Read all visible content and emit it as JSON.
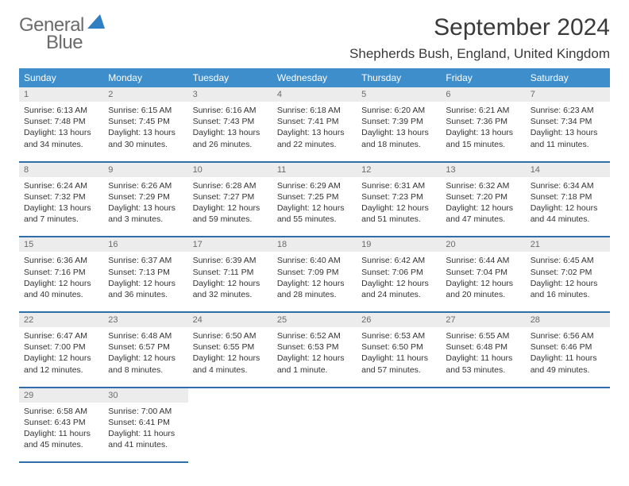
{
  "logo": {
    "line1": "General",
    "line2": "Blue"
  },
  "title": "September 2024",
  "location": "Shepherds Bush, England, United Kingdom",
  "colors": {
    "header_bg": "#3d8ecb",
    "header_text": "#ffffff",
    "daynum_bg": "#ececec",
    "daynum_text": "#6b6b6b",
    "row_border": "#2f6fa8",
    "logo_gray": "#6b6b6b",
    "logo_blue": "#2f7fc2"
  },
  "col_headers": [
    "Sunday",
    "Monday",
    "Tuesday",
    "Wednesday",
    "Thursday",
    "Friday",
    "Saturday"
  ],
  "weeks": [
    [
      {
        "n": "1",
        "sr": "6:13 AM",
        "ss": "7:48 PM",
        "dl": "13 hours and 34 minutes."
      },
      {
        "n": "2",
        "sr": "6:15 AM",
        "ss": "7:45 PM",
        "dl": "13 hours and 30 minutes."
      },
      {
        "n": "3",
        "sr": "6:16 AM",
        "ss": "7:43 PM",
        "dl": "13 hours and 26 minutes."
      },
      {
        "n": "4",
        "sr": "6:18 AM",
        "ss": "7:41 PM",
        "dl": "13 hours and 22 minutes."
      },
      {
        "n": "5",
        "sr": "6:20 AM",
        "ss": "7:39 PM",
        "dl": "13 hours and 18 minutes."
      },
      {
        "n": "6",
        "sr": "6:21 AM",
        "ss": "7:36 PM",
        "dl": "13 hours and 15 minutes."
      },
      {
        "n": "7",
        "sr": "6:23 AM",
        "ss": "7:34 PM",
        "dl": "13 hours and 11 minutes."
      }
    ],
    [
      {
        "n": "8",
        "sr": "6:24 AM",
        "ss": "7:32 PM",
        "dl": "13 hours and 7 minutes."
      },
      {
        "n": "9",
        "sr": "6:26 AM",
        "ss": "7:29 PM",
        "dl": "13 hours and 3 minutes."
      },
      {
        "n": "10",
        "sr": "6:28 AM",
        "ss": "7:27 PM",
        "dl": "12 hours and 59 minutes."
      },
      {
        "n": "11",
        "sr": "6:29 AM",
        "ss": "7:25 PM",
        "dl": "12 hours and 55 minutes."
      },
      {
        "n": "12",
        "sr": "6:31 AM",
        "ss": "7:23 PM",
        "dl": "12 hours and 51 minutes."
      },
      {
        "n": "13",
        "sr": "6:32 AM",
        "ss": "7:20 PM",
        "dl": "12 hours and 47 minutes."
      },
      {
        "n": "14",
        "sr": "6:34 AM",
        "ss": "7:18 PM",
        "dl": "12 hours and 44 minutes."
      }
    ],
    [
      {
        "n": "15",
        "sr": "6:36 AM",
        "ss": "7:16 PM",
        "dl": "12 hours and 40 minutes."
      },
      {
        "n": "16",
        "sr": "6:37 AM",
        "ss": "7:13 PM",
        "dl": "12 hours and 36 minutes."
      },
      {
        "n": "17",
        "sr": "6:39 AM",
        "ss": "7:11 PM",
        "dl": "12 hours and 32 minutes."
      },
      {
        "n": "18",
        "sr": "6:40 AM",
        "ss": "7:09 PM",
        "dl": "12 hours and 28 minutes."
      },
      {
        "n": "19",
        "sr": "6:42 AM",
        "ss": "7:06 PM",
        "dl": "12 hours and 24 minutes."
      },
      {
        "n": "20",
        "sr": "6:44 AM",
        "ss": "7:04 PM",
        "dl": "12 hours and 20 minutes."
      },
      {
        "n": "21",
        "sr": "6:45 AM",
        "ss": "7:02 PM",
        "dl": "12 hours and 16 minutes."
      }
    ],
    [
      {
        "n": "22",
        "sr": "6:47 AM",
        "ss": "7:00 PM",
        "dl": "12 hours and 12 minutes."
      },
      {
        "n": "23",
        "sr": "6:48 AM",
        "ss": "6:57 PM",
        "dl": "12 hours and 8 minutes."
      },
      {
        "n": "24",
        "sr": "6:50 AM",
        "ss": "6:55 PM",
        "dl": "12 hours and 4 minutes."
      },
      {
        "n": "25",
        "sr": "6:52 AM",
        "ss": "6:53 PM",
        "dl": "12 hours and 1 minute."
      },
      {
        "n": "26",
        "sr": "6:53 AM",
        "ss": "6:50 PM",
        "dl": "11 hours and 57 minutes."
      },
      {
        "n": "27",
        "sr": "6:55 AM",
        "ss": "6:48 PM",
        "dl": "11 hours and 53 minutes."
      },
      {
        "n": "28",
        "sr": "6:56 AM",
        "ss": "6:46 PM",
        "dl": "11 hours and 49 minutes."
      }
    ],
    [
      {
        "n": "29",
        "sr": "6:58 AM",
        "ss": "6:43 PM",
        "dl": "11 hours and 45 minutes."
      },
      {
        "n": "30",
        "sr": "7:00 AM",
        "ss": "6:41 PM",
        "dl": "11 hours and 41 minutes."
      },
      null,
      null,
      null,
      null,
      null
    ]
  ],
  "labels": {
    "sunrise": "Sunrise:",
    "sunset": "Sunset:",
    "daylight": "Daylight:"
  }
}
